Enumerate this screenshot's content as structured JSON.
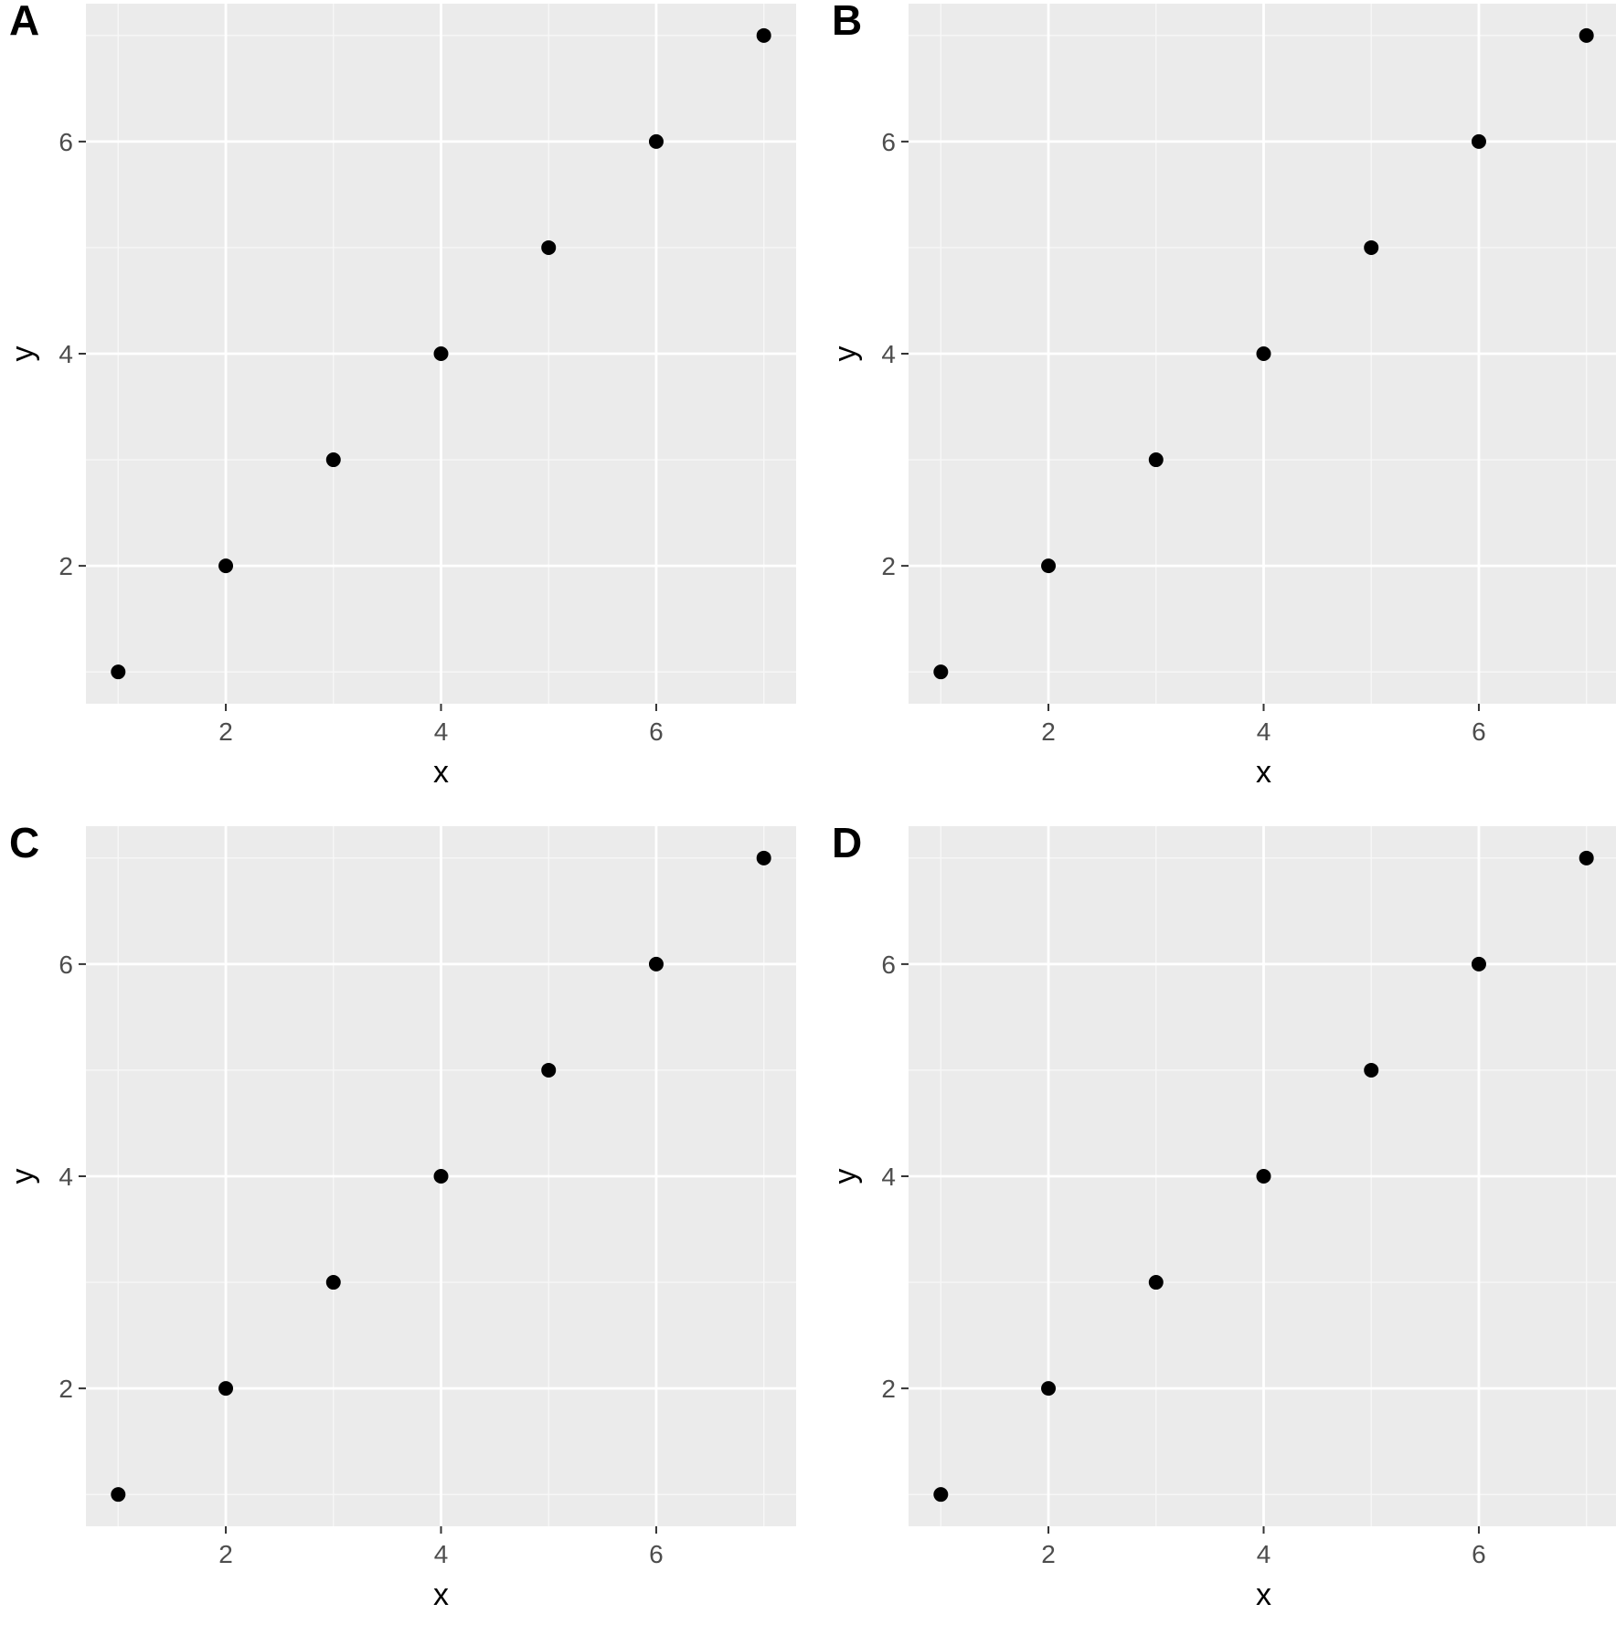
{
  "chart_data": [
    {
      "panel_label": "A",
      "type": "scatter",
      "x": [
        1,
        2,
        3,
        4,
        5,
        6,
        7
      ],
      "y": [
        1,
        2,
        3,
        4,
        5,
        6,
        7
      ],
      "xlabel": "x",
      "ylabel": "y",
      "xlim": [
        0.7,
        7.3
      ],
      "ylim": [
        0.7,
        7.3
      ],
      "xticks": [
        2,
        4,
        6
      ],
      "yticks": [
        2,
        4,
        6
      ],
      "xtick_labels": [
        "2",
        "4",
        "6"
      ],
      "ytick_labels": [
        "2",
        "4",
        "6"
      ],
      "grid": true
    },
    {
      "panel_label": "B",
      "type": "scatter",
      "x": [
        1,
        2,
        3,
        4,
        5,
        6,
        7
      ],
      "y": [
        1,
        2,
        3,
        4,
        5,
        6,
        7
      ],
      "xlabel": "x",
      "ylabel": "y",
      "xlim": [
        0.7,
        7.3
      ],
      "ylim": [
        0.7,
        7.3
      ],
      "xticks": [
        2,
        4,
        6
      ],
      "yticks": [
        2,
        4,
        6
      ],
      "xtick_labels": [
        "2",
        "4",
        "6"
      ],
      "ytick_labels": [
        "2",
        "4",
        "6"
      ],
      "grid": true
    },
    {
      "panel_label": "C",
      "type": "scatter",
      "x": [
        1,
        2,
        3,
        4,
        5,
        6,
        7
      ],
      "y": [
        1,
        2,
        3,
        4,
        5,
        6,
        7
      ],
      "xlabel": "x",
      "ylabel": "y",
      "xlim": [
        0.7,
        7.3
      ],
      "ylim": [
        0.7,
        7.3
      ],
      "xticks": [
        2,
        4,
        6
      ],
      "yticks": [
        2,
        4,
        6
      ],
      "xtick_labels": [
        "2",
        "4",
        "6"
      ],
      "ytick_labels": [
        "2",
        "4",
        "6"
      ],
      "grid": true
    },
    {
      "panel_label": "D",
      "type": "scatter",
      "x": [
        1,
        2,
        3,
        4,
        5,
        6,
        7
      ],
      "y": [
        1,
        2,
        3,
        4,
        5,
        6,
        7
      ],
      "xlabel": "x",
      "ylabel": "y",
      "xlim": [
        0.7,
        7.3
      ],
      "ylim": [
        0.7,
        7.3
      ],
      "xticks": [
        2,
        4,
        6
      ],
      "yticks": [
        2,
        4,
        6
      ],
      "xtick_labels": [
        "2",
        "4",
        "6"
      ],
      "ytick_labels": [
        "2",
        "4",
        "6"
      ],
      "grid": true
    }
  ],
  "colors": {
    "panel_background": "#ebebeb",
    "grid_major": "#ffffff",
    "grid_minor": "#f7f7f7",
    "point": "#000000",
    "tick_text": "#4d4d4d",
    "tick_mark": "#333333",
    "title_text": "#000000"
  }
}
